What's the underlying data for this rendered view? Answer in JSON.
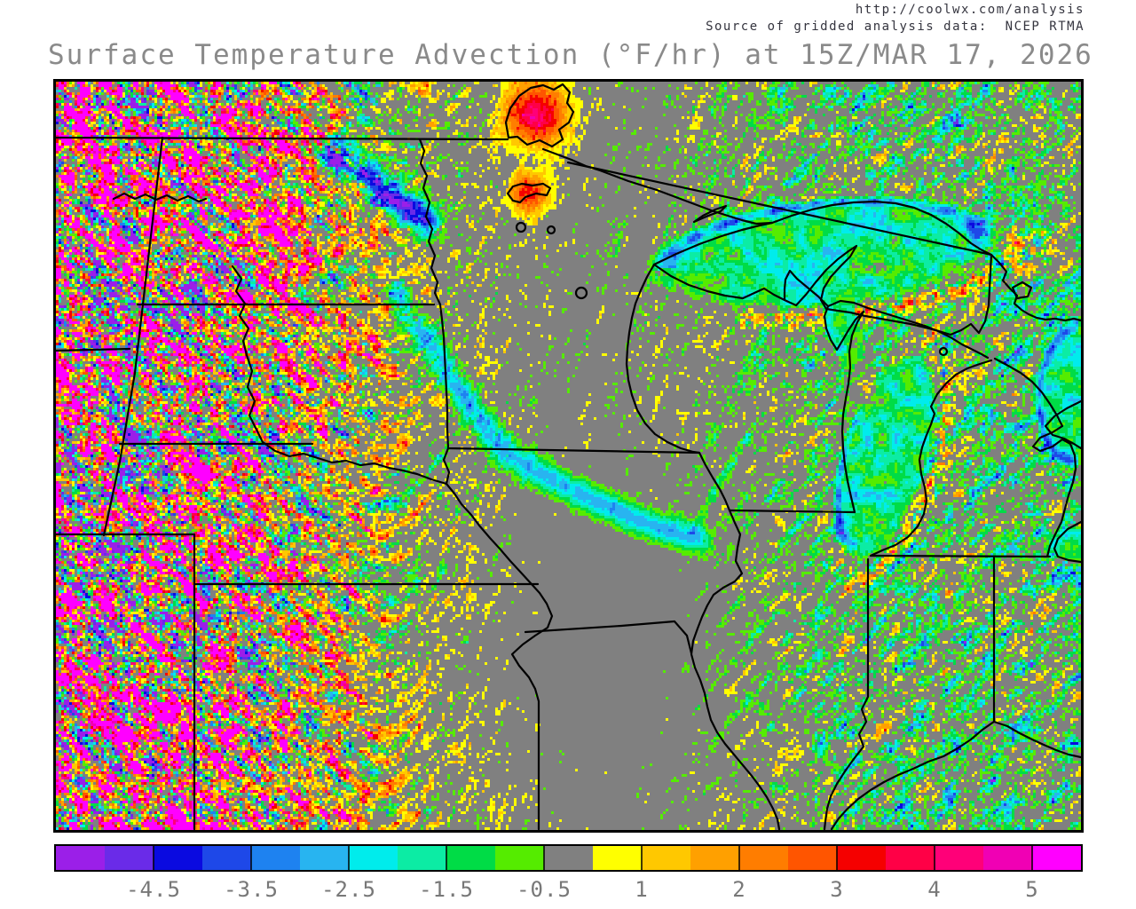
{
  "header": {
    "url": "http://coolwx.com/analysis",
    "source_line": "Source of gridded analysis data:  NCEP RTMA",
    "title": "Surface Temperature Advection (°F/hr) at 15Z/MAR 17, 2026"
  },
  "colors": {
    "header_text": "#35353f",
    "title_text": "#8a8a8a",
    "tick_label_text": "#787878",
    "neutral_gray": "#808080",
    "frame": "#000000",
    "background": "#ffffff"
  },
  "chart_data": {
    "type": "heatmap",
    "title": "Surface Temperature Advection (°F/hr) at 15Z/MAR 17, 2026",
    "units": "°F/hr",
    "valid_time": "15Z/MAR 17, 2026",
    "region": "Upper Midwest and Great Lakes, United States",
    "colorbar": {
      "tick_labels": [
        "-4.5",
        "-3.5",
        "-2.5",
        "-1.5",
        "-0.5",
        "1",
        "2",
        "3",
        "4",
        "5"
      ],
      "bin_edges": [
        -5,
        -4.5,
        -4,
        -3.5,
        -3,
        -2.5,
        -2,
        -1.5,
        -1,
        -0.5,
        0.5,
        1,
        1.5,
        2,
        2.5,
        3,
        3.5,
        4,
        4.5,
        5
      ],
      "colors": [
        "#9b1fe8",
        "#6a2be8",
        "#0a0ae0",
        "#1e48e8",
        "#1e82f0",
        "#28b4f0",
        "#00ecec",
        "#0cecA4",
        "#00dc46",
        "#55ec00",
        "#808080",
        "#ffff00",
        "#ffc800",
        "#ffa000",
        "#ff7d00",
        "#ff5500",
        "#f50000",
        "#ff0046",
        "#ff0078",
        "#f000b4",
        "#ff00ff"
      ],
      "legend_position": "bottom",
      "grid": false
    },
    "field_regions": [
      {
        "area": "western high plains (MT/WY/CO/NE/KS/Dakotas)",
        "advection": "strong mixed warm advection, +2 to +5 °F/hr streaks with embedded -3 to -5 cold bands"
      },
      {
        "area": "Minnesota, Iowa, Missouri, central corridor",
        "advection": "weak, mostly -0.5 to +1.5 °F/hr (gray/yellow)"
      },
      {
        "area": "Wisconsin, Illinois, Indiana, Michigan",
        "advection": "weak cold advection speckle, -0.5 to -2 °F/hr (green)"
      },
      {
        "area": "Lake Superior and Lake Michigan",
        "advection": "cold advection -1 to -3 °F/hr, shoreline bands to -5 with warm +3 fringe on Upper Peninsula"
      }
    ]
  },
  "map_features": [
    "US-Canada border",
    "state borders",
    "Lake Superior",
    "Lake Michigan",
    "Lake Huron",
    "Green Bay",
    "Lake of the Woods",
    "Red Lake",
    "Mille Lacs",
    "Mississippi River",
    "Missouri River",
    "Ohio River",
    "Wabash River"
  ]
}
